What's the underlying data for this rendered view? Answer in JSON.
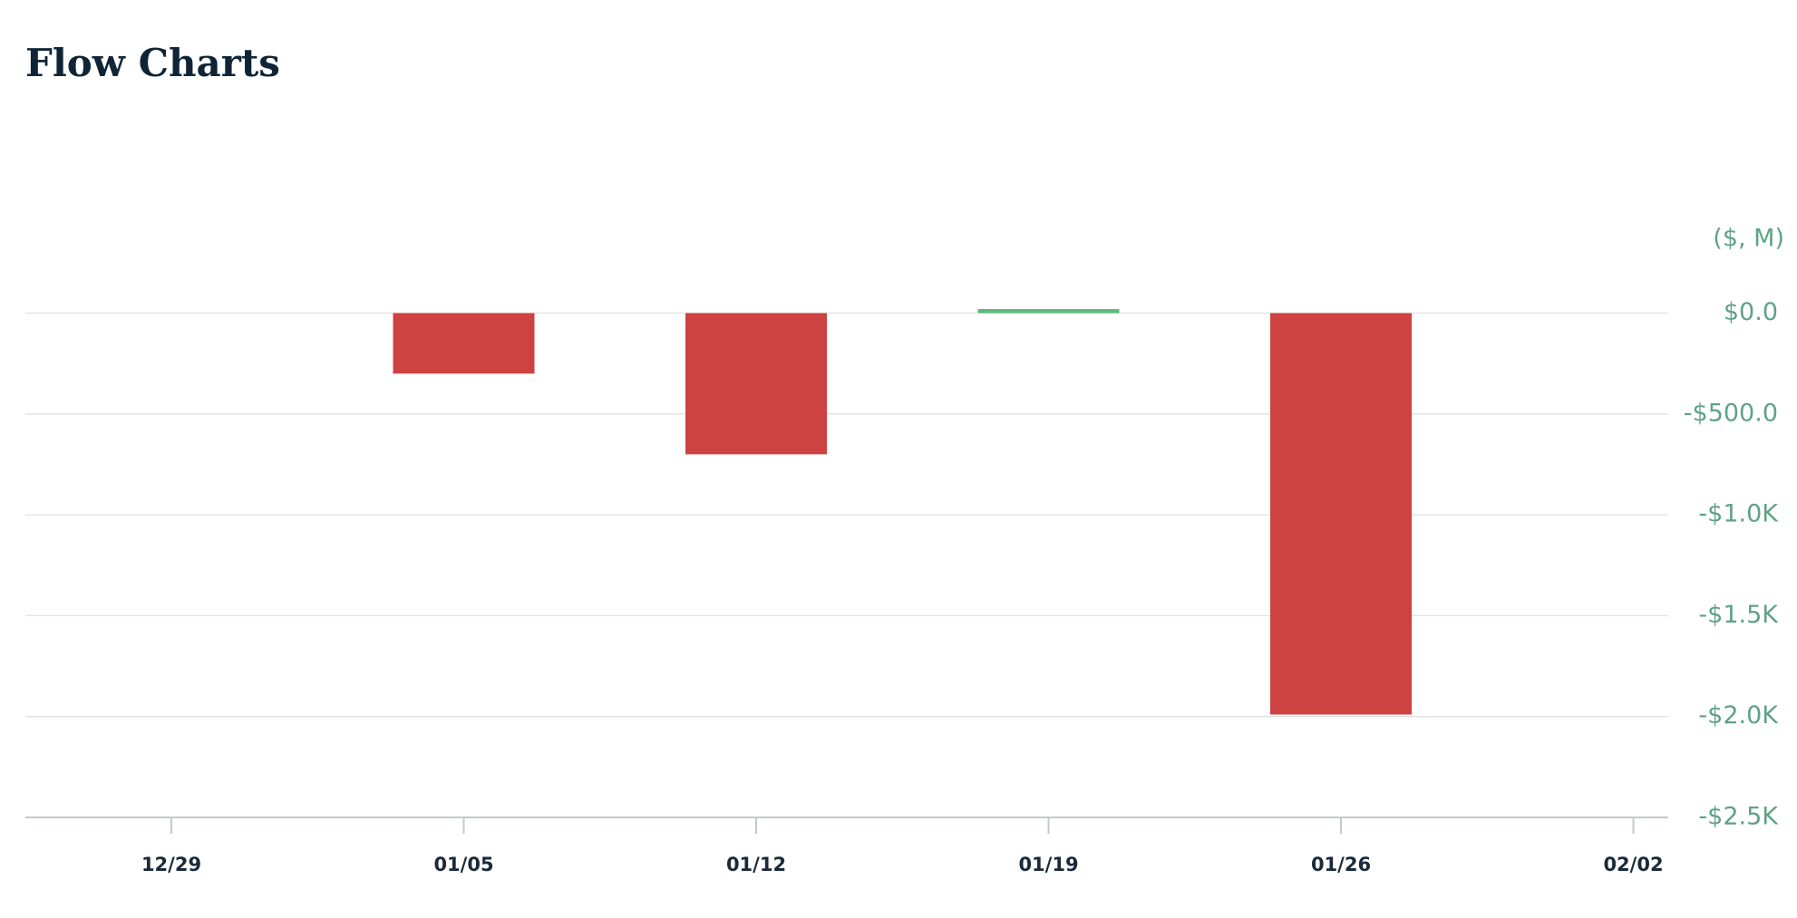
{
  "chart_data": {
    "type": "bar",
    "title": "Flow Charts",
    "unit_label": "($, M)",
    "categories": [
      "12/29",
      "01/05",
      "01/12",
      "01/19",
      "01/26",
      "02/02"
    ],
    "values": [
      null,
      -300,
      -700,
      20,
      -1990,
      null
    ],
    "positive_color": "#5cb87a",
    "negative_color": "#cf4242",
    "ylim": [
      -2500,
      0
    ],
    "yticks": [
      {
        "value": 0,
        "label": "$0.0"
      },
      {
        "value": -500,
        "label": "-$500.0"
      },
      {
        "value": -1000,
        "label": "-$1.0K"
      },
      {
        "value": -1500,
        "label": "-$1.5K"
      },
      {
        "value": -2000,
        "label": "-$2.0K"
      },
      {
        "value": -2500,
        "label": "-$2.5K"
      }
    ],
    "grid": true
  }
}
